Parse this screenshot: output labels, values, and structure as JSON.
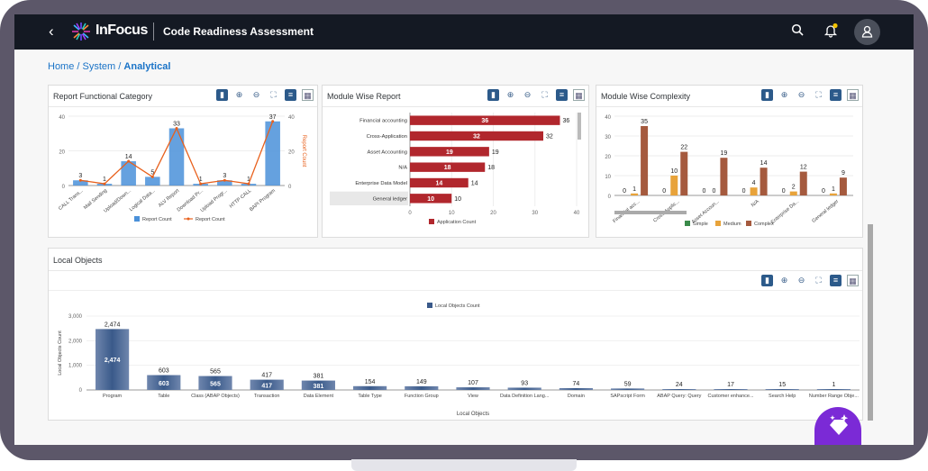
{
  "header": {
    "title": "Code Readiness Assessment",
    "brand": "InFocus",
    "back_icon": "chevron-left-icon"
  },
  "breadcrumb": [
    {
      "label": "Home"
    },
    {
      "label": "System"
    },
    {
      "label": "Analytical"
    }
  ],
  "breadcrumb_sep": "/",
  "charts": {
    "functional": {
      "title": "Report Functional Category",
      "legend": [
        "Report Count",
        "Report Count"
      ],
      "y2label": "Report Count"
    },
    "module": {
      "title": "Module Wise Report",
      "legend": [
        "Application Count"
      ]
    },
    "complexity": {
      "title": "Module Wise Complexity",
      "legend": [
        "Simple",
        "Medium",
        "Complex"
      ]
    },
    "local": {
      "title": "Local Objects",
      "legend": [
        "Local Objects Count"
      ],
      "xlabel": "Local Objects",
      "ylabel": "Local Objects Count"
    }
  },
  "chart_data": [
    {
      "type": "bar",
      "title": "Report Functional Category",
      "categories": [
        "CALL Trans...",
        "Mail Sending",
        "Upload/Down...",
        "Logical Data...",
        "ALV Report",
        "Download Pr...",
        "Upload Progr...",
        "HTTP CALL",
        "BAPI Program"
      ],
      "series": [
        {
          "name": "Report Count",
          "values": [
            3,
            1,
            14,
            5,
            33,
            1,
            3,
            1,
            37
          ]
        }
      ],
      "ylim": [
        0,
        40
      ],
      "yticks": [
        0,
        20,
        40
      ],
      "ylabel": "Report Count",
      "colors": [
        "#4a90d9",
        "#e8601c"
      ]
    },
    {
      "type": "bar",
      "title": "Module Wise Report",
      "categories": [
        "Financial accounting",
        "Cross-Application",
        "Asset Accounting",
        "N/A",
        "Enterprise Data Model",
        "General ledger"
      ],
      "series": [
        {
          "name": "Application Count",
          "values": [
            36,
            32,
            19,
            18,
            14,
            10
          ]
        }
      ],
      "xlim": [
        0,
        40
      ],
      "xticks": [
        0,
        10,
        20,
        30,
        40
      ],
      "colors": [
        "#b1272d"
      ]
    },
    {
      "type": "bar",
      "title": "Module Wise Complexity",
      "categories": [
        "Financial acc...",
        "Cross-Applic...",
        "Asset Accoun...",
        "N/A",
        "Enterprise Da...",
        "General ledger"
      ],
      "series": [
        {
          "name": "Simple",
          "values": [
            0,
            0,
            0,
            0,
            0,
            0
          ]
        },
        {
          "name": "Medium",
          "values": [
            1,
            10,
            0,
            4,
            2,
            1
          ]
        },
        {
          "name": "Complex",
          "values": [
            35,
            22,
            19,
            14,
            12,
            9
          ]
        }
      ],
      "ylim": [
        0,
        40
      ],
      "yticks": [
        0,
        10,
        20,
        30,
        40
      ],
      "colors": [
        "#3a8a4a",
        "#e8a33a",
        "#a55a3e"
      ]
    },
    {
      "type": "bar",
      "title": "Local Objects",
      "categories": [
        "Program",
        "Table",
        "Class (ABAP Objects)",
        "Transaction",
        "Data Element",
        "Table Type",
        "Function Group",
        "View",
        "Data Definition Lang...",
        "Domain",
        "SAPscript Form",
        "ABAP Query: Query",
        "Customer enhance...",
        "Search Help",
        "Number Range Obje..."
      ],
      "series": [
        {
          "name": "Local Objects Count",
          "values": [
            2474,
            603,
            565,
            417,
            381,
            154,
            149,
            107,
            93,
            74,
            59,
            24,
            17,
            15,
            1
          ]
        }
      ],
      "ylim": [
        0,
        3000
      ],
      "yticks": [
        0,
        1000,
        2000,
        3000
      ],
      "xlabel": "Local Objects",
      "ylabel": "Local Objects Count",
      "colors": [
        "#3a5a8a"
      ]
    }
  ]
}
